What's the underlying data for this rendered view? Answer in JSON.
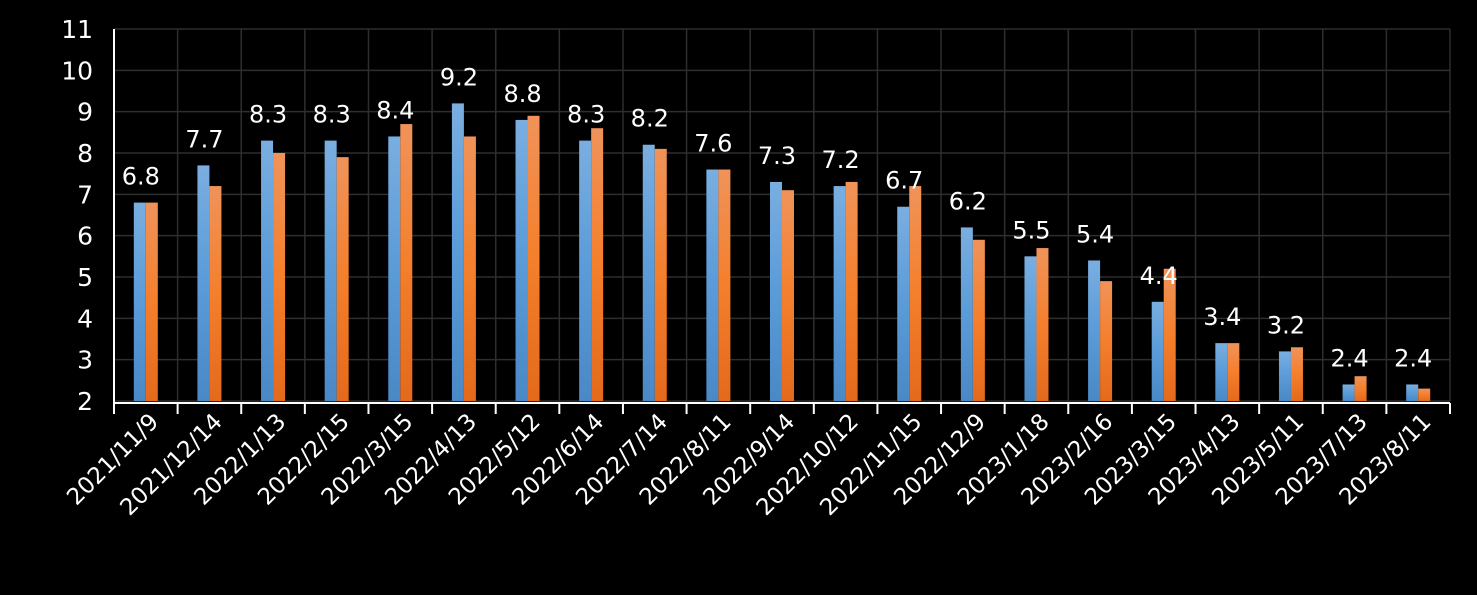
{
  "chart_data": {
    "type": "bar",
    "title": "",
    "xlabel": "",
    "ylabel": "",
    "ylim": [
      2,
      11
    ],
    "yticks": [
      2,
      3,
      4,
      5,
      6,
      7,
      8,
      9,
      10,
      11
    ],
    "grid": true,
    "legend": "none",
    "categories": [
      "2021/11/9",
      "2021/12/14",
      "2022/1/13",
      "2022/2/15",
      "2022/3/15",
      "2022/4/13",
      "2022/5/12",
      "2022/6/14",
      "2022/7/14",
      "2022/8/11",
      "2022/9/14",
      "2022/10/12",
      "2022/11/15",
      "2022/12/9",
      "2023/1/18",
      "2023/2/16",
      "2023/3/15",
      "2023/4/13",
      "2023/5/11",
      "2023/7/13",
      "2023/8/11"
    ],
    "series": [
      {
        "color": "#5b9bd5",
        "data_labels": true,
        "values": [
          6.8,
          7.7,
          8.3,
          8.3,
          8.4,
          9.2,
          8.8,
          8.3,
          8.2,
          7.6,
          7.3,
          7.2,
          6.7,
          6.2,
          5.5,
          5.4,
          4.4,
          3.4,
          3.2,
          2.4,
          2.4
        ]
      },
      {
        "color": "#ed7d31",
        "data_labels": false,
        "values": [
          6.8,
          7.2,
          8.0,
          7.9,
          8.7,
          8.4,
          8.9,
          8.6,
          8.1,
          7.6,
          7.1,
          7.3,
          7.2,
          5.9,
          5.7,
          4.9,
          5.2,
          3.4,
          3.3,
          2.6,
          2.3
        ]
      }
    ]
  }
}
